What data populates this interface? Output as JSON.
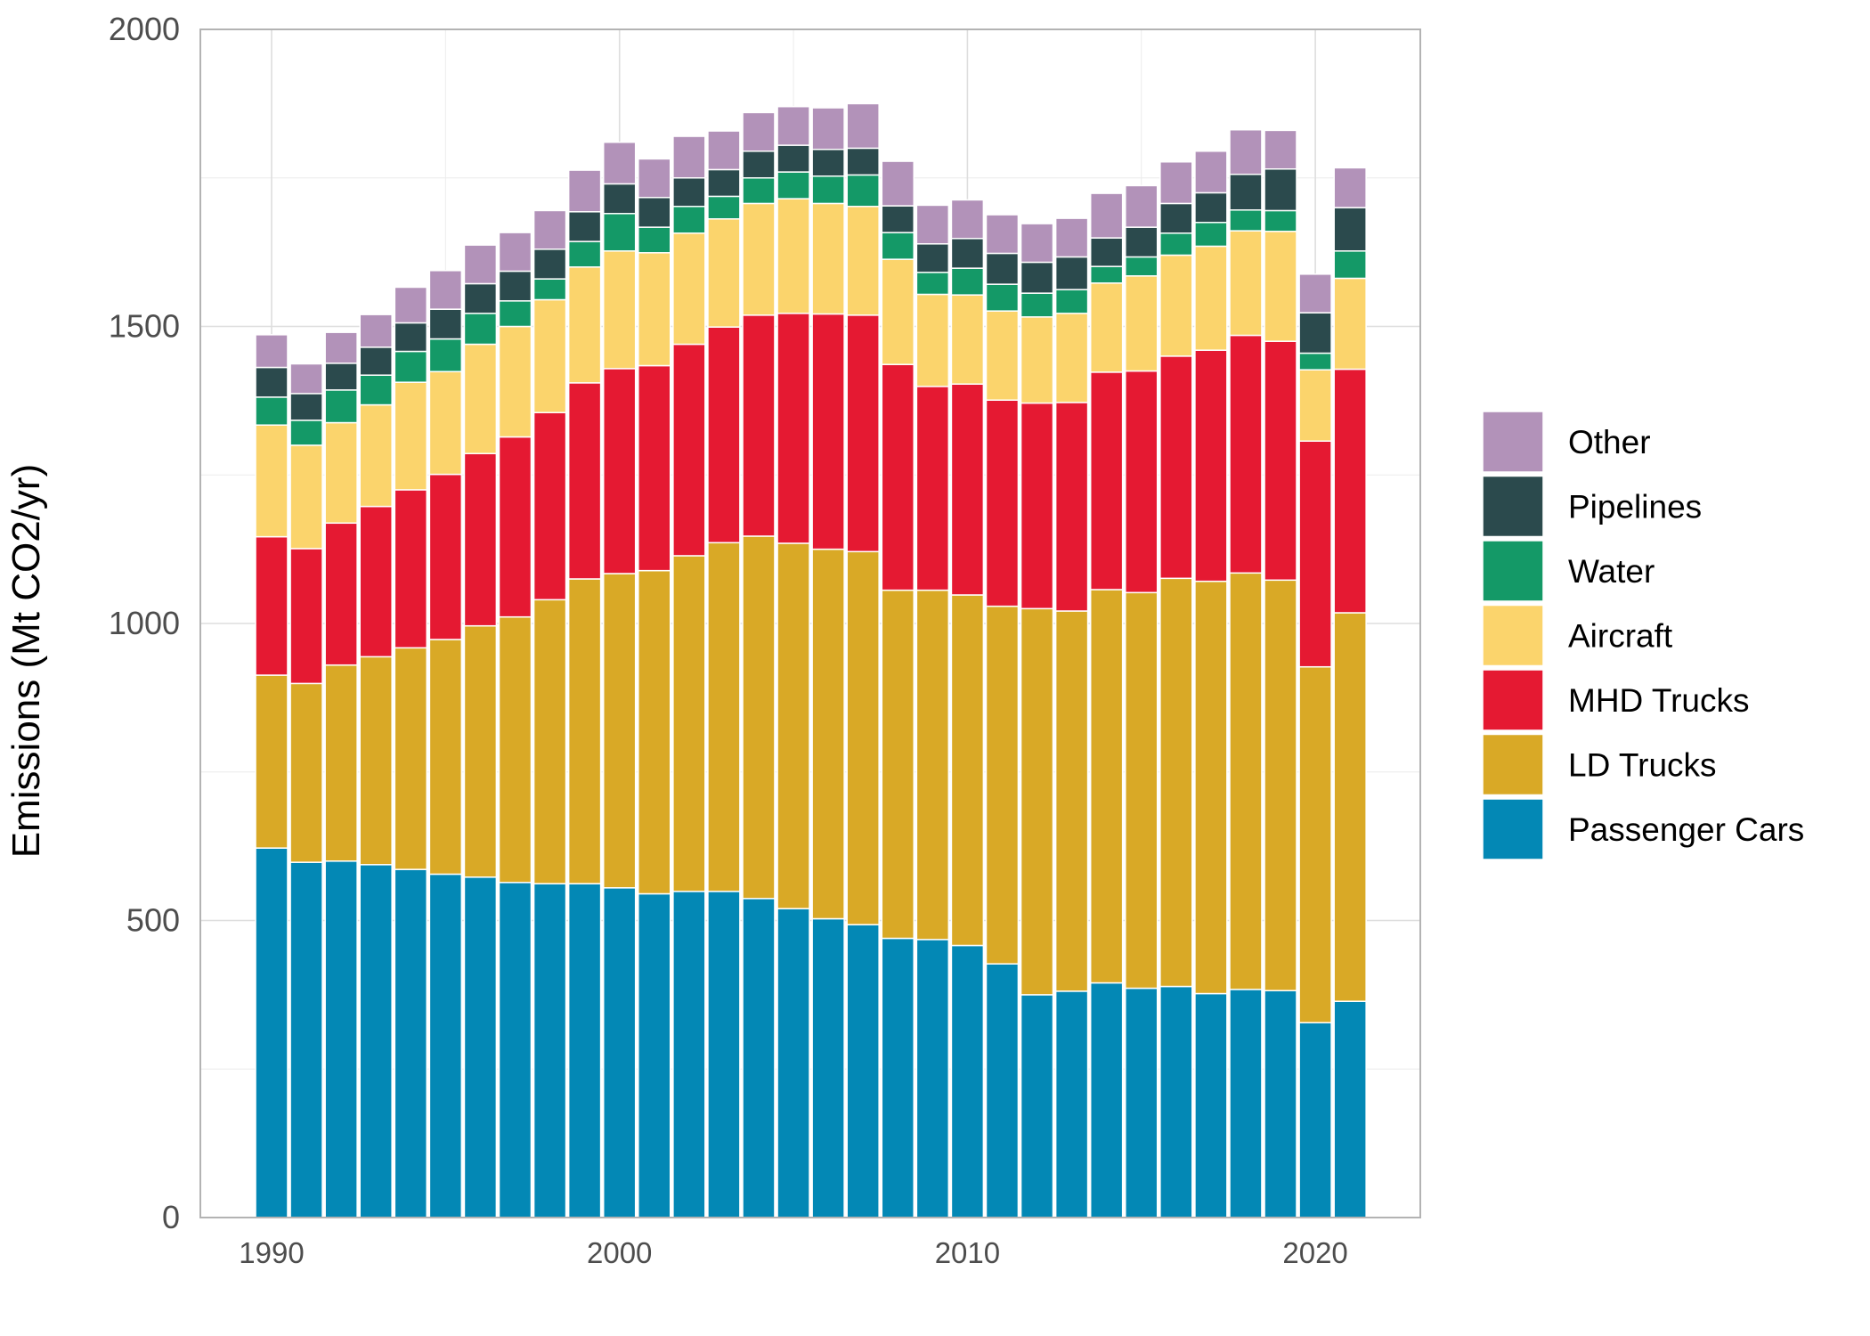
{
  "chart_data": {
    "type": "bar",
    "stacked": true,
    "xlabel": "",
    "ylabel": "Emissions (Mt CO2/yr)",
    "ylim": [
      0,
      2000
    ],
    "yticks": [
      0,
      500,
      1000,
      1500,
      2000
    ],
    "xticks": [
      1990,
      2000,
      2010,
      2020
    ],
    "grid": true,
    "legend_position": "right",
    "categories": [
      1990,
      1991,
      1992,
      1993,
      1994,
      1995,
      1996,
      1997,
      1998,
      1999,
      2000,
      2001,
      2002,
      2003,
      2004,
      2005,
      2006,
      2007,
      2008,
      2009,
      2010,
      2011,
      2012,
      2013,
      2014,
      2015,
      2016,
      2017,
      2018,
      2019,
      2020,
      2021
    ],
    "series": [
      {
        "name": "Passenger Cars",
        "color": "#0388b5",
        "values": [
          622,
          598,
          600,
          594,
          586,
          578,
          573,
          564,
          562,
          562,
          555,
          545,
          549,
          549,
          537,
          520,
          503,
          493,
          470,
          468,
          458,
          427,
          375,
          381,
          395,
          386,
          389,
          377,
          384,
          382,
          328,
          364
        ]
      },
      {
        "name": "LD Trucks",
        "color": "#d9a926",
        "values": [
          291,
          301,
          330,
          350,
          373,
          395,
          423,
          447,
          478,
          513,
          529,
          544,
          565,
          587,
          610,
          615,
          622,
          628,
          586,
          588,
          590,
          602,
          650,
          640,
          662,
          666,
          687,
          694,
          701,
          691,
          599,
          654
        ]
      },
      {
        "name": "MHD Trucks",
        "color": "#e51932",
        "values": [
          233,
          227,
          239,
          253,
          266,
          278,
          290,
          303,
          315,
          330,
          345,
          345,
          356,
          363,
          372,
          387,
          396,
          398,
          380,
          343,
          355,
          347,
          346,
          351,
          366,
          373,
          374,
          389,
          400,
          402,
          380,
          410
        ]
      },
      {
        "name": "Aircraft",
        "color": "#fbd46c",
        "values": [
          188,
          174,
          169,
          171,
          181,
          173,
          184,
          186,
          190,
          195,
          198,
          190,
          187,
          182,
          188,
          193,
          186,
          183,
          177,
          155,
          150,
          150,
          145,
          150,
          150,
          160,
          170,
          175,
          176,
          185,
          120,
          153
        ]
      },
      {
        "name": "Water",
        "color": "#149967",
        "values": [
          47,
          42,
          55,
          50,
          52,
          55,
          52,
          43,
          35,
          43,
          63,
          43,
          45,
          38,
          43,
          45,
          46,
          53,
          45,
          37,
          45,
          45,
          40,
          40,
          28,
          32,
          37,
          40,
          35,
          35,
          28,
          46
        ]
      },
      {
        "name": "Pipelines",
        "color": "#2b4a4d",
        "values": [
          50,
          45,
          45,
          47,
          48,
          50,
          50,
          50,
          50,
          50,
          50,
          50,
          48,
          45,
          45,
          45,
          45,
          45,
          45,
          48,
          50,
          52,
          52,
          55,
          48,
          50,
          50,
          50,
          60,
          70,
          68,
          73
        ]
      },
      {
        "name": "Other",
        "color": "#b292b9",
        "values": [
          55,
          50,
          52,
          55,
          60,
          65,
          65,
          65,
          65,
          70,
          70,
          65,
          70,
          65,
          65,
          65,
          70,
          75,
          75,
          65,
          65,
          65,
          65,
          65,
          75,
          70,
          70,
          70,
          75,
          65,
          65,
          67
        ]
      }
    ]
  }
}
